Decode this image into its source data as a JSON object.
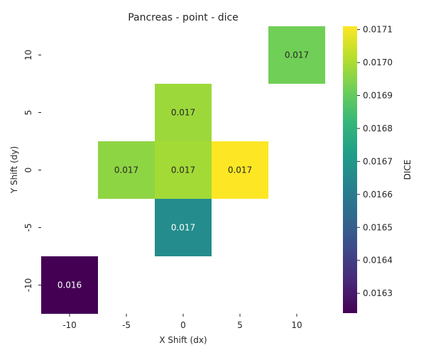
{
  "chart_data": {
    "type": "heatmap",
    "title": "Pancreas - point - dice",
    "xlabel": "X Shift (dx)",
    "ylabel": "Y Shift (dy)",
    "x_categories": [
      "-10",
      "-5",
      "0",
      "5",
      "10"
    ],
    "y_categories": [
      "10",
      "5",
      "0",
      "-5",
      "-10"
    ],
    "cells": [
      {
        "x": "10",
        "y": "10",
        "value": 0.01692,
        "label": "0.017"
      },
      {
        "x": "0",
        "y": "5",
        "value": 0.01698,
        "label": "0.017"
      },
      {
        "x": "-5",
        "y": "0",
        "value": 0.01696,
        "label": "0.017"
      },
      {
        "x": "0",
        "y": "0",
        "value": 0.01699,
        "label": "0.017"
      },
      {
        "x": "5",
        "y": "0",
        "value": 0.01711,
        "label": "0.017"
      },
      {
        "x": "0",
        "y": "-5",
        "value": 0.01666,
        "label": "0.017"
      },
      {
        "x": "-10",
        "y": "-10",
        "value": 0.01624,
        "label": "0.016"
      }
    ],
    "colorbar": {
      "label": "DICE",
      "vmin": 0.01624,
      "vmax": 0.01711,
      "ticks": [
        "0.0163",
        "0.0164",
        "0.0165",
        "0.0166",
        "0.0167",
        "0.0168",
        "0.0169",
        "0.0170",
        "0.0171"
      ],
      "colormap": "viridis"
    },
    "grid": false,
    "legend": "colorbar-right"
  }
}
